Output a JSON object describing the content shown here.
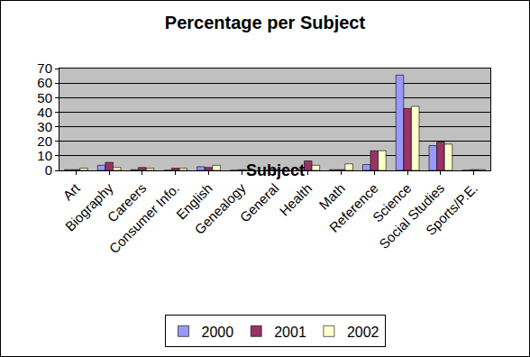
{
  "chart_data": {
    "type": "bar",
    "title": "Percentage per Subject",
    "x_label": "Subject",
    "categories": [
      "Art",
      "Biography",
      "Careers",
      "Consumer Info.",
      "English",
      "Genealogy",
      "General",
      "Health",
      "Math",
      "Reference",
      "Science",
      "Social Studies",
      "Sports/P.E."
    ],
    "series": [
      {
        "name": "2000",
        "color": "#9999ff",
        "values": [
          0.5,
          3.5,
          0.5,
          0,
          2.5,
          0,
          0,
          0.5,
          0.5,
          4,
          65.5,
          17,
          0
        ]
      },
      {
        "name": "2001",
        "color": "#993366",
        "values": [
          0.5,
          5.5,
          2,
          1.5,
          2,
          0.5,
          0.5,
          6.5,
          0.5,
          13.5,
          42.5,
          19.5,
          0.5
        ]
      },
      {
        "name": "2002",
        "color": "#ffffcc",
        "values": [
          1.5,
          2,
          1.5,
          1.5,
          3.5,
          0,
          0,
          3.5,
          4.5,
          13.5,
          44,
          18,
          0.5
        ]
      }
    ],
    "ylim": [
      0,
      70
    ],
    "yticks": [
      0,
      10,
      20,
      30,
      40,
      50,
      60,
      70
    ],
    "grid": true,
    "legend": "bottom"
  }
}
